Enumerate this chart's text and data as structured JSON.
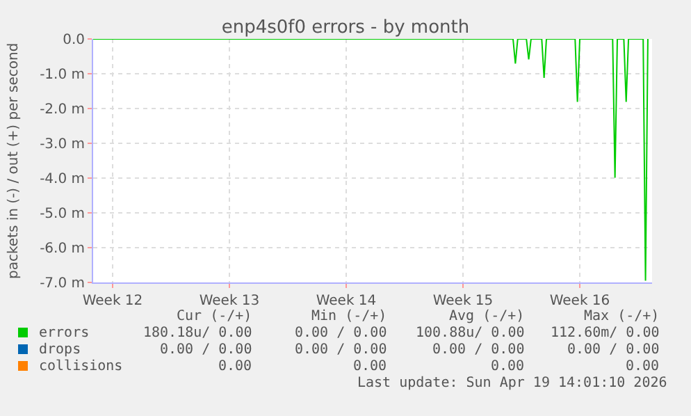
{
  "chart_data": {
    "type": "line",
    "title": "enp4s0f0 errors - by month",
    "ylabel": "packets in (-) / out (+) per second",
    "xlim": [
      "2026-03-18T08:00",
      "2026-04-20T20:00"
    ],
    "xticks": [
      {
        "value": "2026-03-19T12:00",
        "label": "Week 12"
      },
      {
        "value": "2026-03-26T12:00",
        "label": "Week 13"
      },
      {
        "value": "2026-04-02T12:00",
        "label": "Week 14"
      },
      {
        "value": "2026-04-09T12:00",
        "label": "Week 15"
      },
      {
        "value": "2026-04-16T12:00",
        "label": "Week 16"
      }
    ],
    "ylim": [
      -7.0,
      0.0
    ],
    "yticks": [
      {
        "value": 0,
        "label": "0.0"
      },
      {
        "value": -1,
        "label": "-1.0 m"
      },
      {
        "value": -2,
        "label": "-2.0 m"
      },
      {
        "value": -3,
        "label": "-3.0 m"
      },
      {
        "value": -4,
        "label": "-4.0 m"
      },
      {
        "value": -5,
        "label": "-5.0 m"
      },
      {
        "value": -6,
        "label": "-6.0 m"
      },
      {
        "value": -7,
        "label": "-7.0 m"
      }
    ],
    "x": [
      "2026-03-18T08:00",
      "2026-04-12T12:00",
      "2026-04-12T15:22",
      "2026-04-12T18:43",
      "2026-04-13T07:12",
      "2026-04-13T10:34",
      "2026-04-13T13:55",
      "2026-04-14T05:17",
      "2026-04-14T08:38",
      "2026-04-14T12:00",
      "2026-04-16T05:17",
      "2026-04-16T08:38",
      "2026-04-16T12:00",
      "2026-04-18T11:17",
      "2026-04-18T14:38",
      "2026-04-18T18:00",
      "2026-04-19T03:22",
      "2026-04-19T06:43",
      "2026-04-19T10:05",
      "2026-04-20T07:12",
      "2026-04-20T10:34",
      "2026-04-20T13:55"
    ],
    "series": [
      {
        "name": "errors",
        "color": "#00cc00",
        "values": [
          0,
          0,
          -0.71,
          0,
          0,
          -0.59,
          0,
          0,
          -1.12,
          0,
          0,
          -1.81,
          0,
          0,
          -3.99,
          0,
          0,
          -1.81,
          0,
          0,
          -6.95,
          0
        ]
      },
      {
        "name": "drops",
        "color": "#0066b3",
        "values": [
          null,
          null,
          null,
          null,
          null,
          null,
          null,
          null,
          null,
          null,
          null,
          null,
          null,
          null,
          null,
          null,
          null,
          null,
          null,
          null,
          null,
          null
        ]
      },
      {
        "name": "collisions",
        "color": "#ff8000",
        "values": [
          null,
          null,
          null,
          null,
          null,
          null,
          null,
          null,
          null,
          null,
          null,
          null,
          null,
          null,
          null,
          null,
          null,
          null,
          null,
          null,
          null,
          null
        ]
      }
    ],
    "annotations": [
      "Cur (-/+)",
      "Min (-/+)",
      "Avg (-/+)",
      "Max (-/+)",
      "180.18u/ 0.00",
      "0.00 / 0.00",
      "100.88u/ 0.00",
      "112.60m/ 0.00",
      "0.00 / 0.00",
      "0.00 / 0.00",
      "0.00 / 0.00",
      "0.00 / 0.00",
      "0.00",
      "0.00",
      "0.00",
      "0.00",
      "Last update: Sun Apr 19 14:01:10 2026"
    ],
    "grid": true,
    "legend": "bottom left",
    "line_style": "solid",
    "marker": "none"
  }
}
